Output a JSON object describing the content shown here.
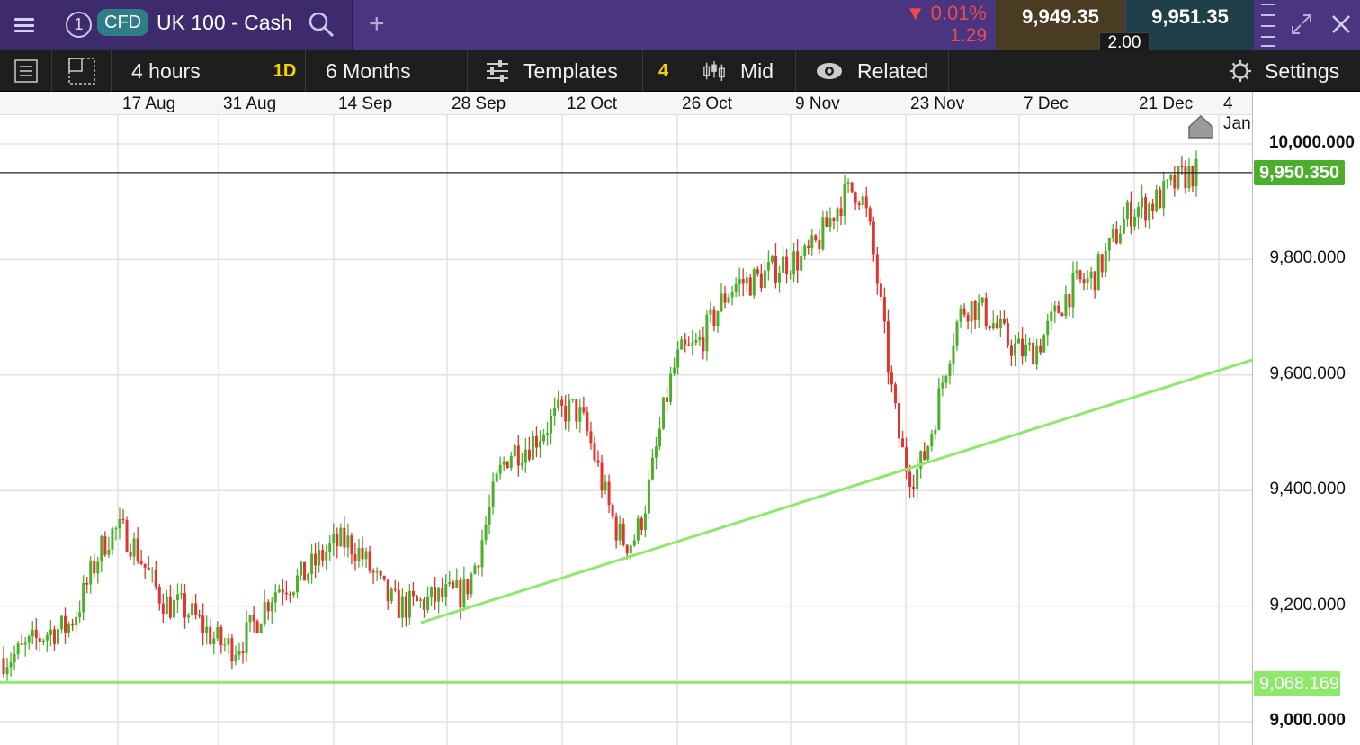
{
  "header": {
    "instrument_number": "1",
    "badge": "CFD",
    "instrument_name": "UK 100 - Cash",
    "change_pct": "▼ 0.01%",
    "change_abs": "1.29",
    "sell_price": "9,949.35",
    "buy_price": "9,951.35",
    "spread": "2.00"
  },
  "toolbar": {
    "interval": "4 hours",
    "interval_badge": "1D",
    "range": "6 Months",
    "templates": "Templates",
    "templates_count": "4",
    "price_type": "Mid",
    "related": "Related",
    "settings": "Settings"
  },
  "icons": [
    "menu-icon",
    "search-icon",
    "plus-icon",
    "expand-icon",
    "close-icon",
    "list-icon",
    "layout-icon",
    "sliders-icon",
    "candles-icon",
    "eye-icon",
    "gear-icon",
    "home-marker-icon"
  ],
  "colors": {
    "header_bg": "#4a3580",
    "toolbar_bg": "#1e1e1e",
    "up_candle": "#4caf2c",
    "down_candle": "#e0342c",
    "trendline": "#8ee86a",
    "current_price": "#4caf2c"
  },
  "chart_data": {
    "type": "candlestick",
    "x_ticks": [
      "17 Aug",
      "31 Aug",
      "14 Sep",
      "28 Sep",
      "12 Oct",
      "26 Oct",
      "9 Nov",
      "23 Nov",
      "7 Dec",
      "21 Dec",
      "4 Jan"
    ],
    "y_ticks": [
      "10,000.000",
      "9,800.000",
      "9,600.000",
      "9,400.000",
      "9,200.000",
      "9,000.000"
    ],
    "ylim": [
      8975,
      10050
    ],
    "current_price": "9,950.350",
    "support_level": "9,068.169",
    "series": [
      {
        "date": "early Aug",
        "close": 9110
      },
      {
        "date": "10 Aug",
        "close": 9160
      },
      {
        "date": "17 Aug",
        "close": 9330
      },
      {
        "date": "24 Aug",
        "close": 9200
      },
      {
        "date": "31 Aug",
        "close": 9130
      },
      {
        "date": "7 Sep",
        "close": 9240
      },
      {
        "date": "14 Sep",
        "close": 9310
      },
      {
        "date": "21 Sep",
        "close": 9200
      },
      {
        "date": "28 Sep",
        "close": 9220
      },
      {
        "date": "5 Oct",
        "close": 9470
      },
      {
        "date": "12 Oct",
        "close": 9540
      },
      {
        "date": "19 Oct",
        "close": 9310
      },
      {
        "date": "26 Oct",
        "close": 9640
      },
      {
        "date": "2 Nov",
        "close": 9760
      },
      {
        "date": "9 Nov",
        "close": 9800
      },
      {
        "date": "16 Nov",
        "close": 9920
      },
      {
        "date": "23 Nov",
        "close": 9430
      },
      {
        "date": "30 Nov",
        "close": 9720
      },
      {
        "date": "7 Dec",
        "close": 9640
      },
      {
        "date": "14 Dec",
        "close": 9760
      },
      {
        "date": "21 Dec",
        "close": 9890
      },
      {
        "date": "28 Dec",
        "close": 9950
      }
    ]
  }
}
